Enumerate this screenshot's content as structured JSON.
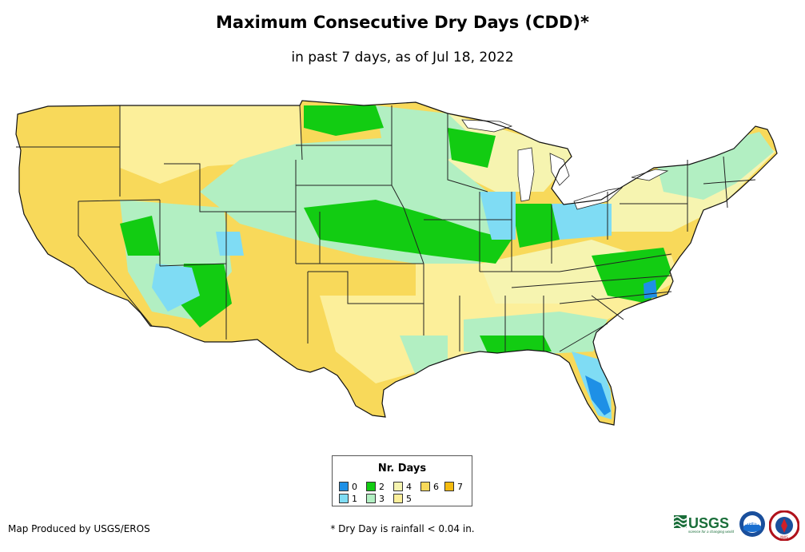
{
  "title": "Maximum Consecutive Dry Days (CDD)*",
  "subtitle": "in past 7 days, as of Jul 18, 2022",
  "legend": {
    "title": "Nr. Days",
    "items": [
      {
        "label": "0",
        "color": "#1e90e6"
      },
      {
        "label": "1",
        "color": "#7fdcf4"
      },
      {
        "label": "2",
        "color": "#12cc12"
      },
      {
        "label": "3",
        "color": "#b2efc2"
      },
      {
        "label": "4",
        "color": "#f6f4b0"
      },
      {
        "label": "5",
        "color": "#fcef9a"
      },
      {
        "label": "6",
        "color": "#f8d95a"
      },
      {
        "label": "7",
        "color": "#f4bb10"
      }
    ]
  },
  "colors": {
    "base_dry": "#f8d95a",
    "state_border": "#222222"
  },
  "footer": {
    "credit": "Map Produced by USGS/EROS",
    "footnote": "* Dry Day is rainfall < 0.04 in."
  },
  "logos": {
    "usgs": "USGS",
    "usgs_tagline": "science for a changing world",
    "noaa": "noaa",
    "nws": "NWS"
  }
}
